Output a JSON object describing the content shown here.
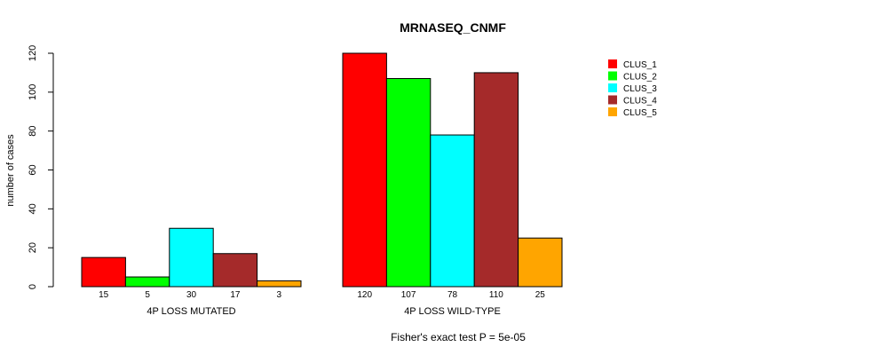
{
  "chart_data": {
    "type": "bar",
    "title": "MRNASEQ_CNMF",
    "ylabel": "number of cases",
    "ylim": [
      0,
      120
    ],
    "yticks": [
      0,
      20,
      40,
      60,
      80,
      100,
      120
    ],
    "groups": [
      {
        "label": "4P LOSS MUTATED",
        "values": [
          15,
          5,
          30,
          17,
          3
        ],
        "value_labels": [
          "15",
          "5",
          "30",
          "17",
          "3"
        ]
      },
      {
        "label": "4P LOSS WILD-TYPE",
        "values": [
          120,
          107,
          78,
          110,
          25
        ],
        "value_labels": [
          "120",
          "107",
          "78",
          "110",
          "25"
        ]
      }
    ],
    "series": [
      {
        "name": "CLUS_1",
        "color": "#ff0000"
      },
      {
        "name": "CLUS_2",
        "color": "#00ff00"
      },
      {
        "name": "CLUS_3",
        "color": "#00ffff"
      },
      {
        "name": "CLUS_4",
        "color": "#a52a2a"
      },
      {
        "name": "CLUS_5",
        "color": "#ffa500"
      }
    ],
    "legend_position": "top-right",
    "footer": "Fisher's exact test P = 5e-05"
  }
}
